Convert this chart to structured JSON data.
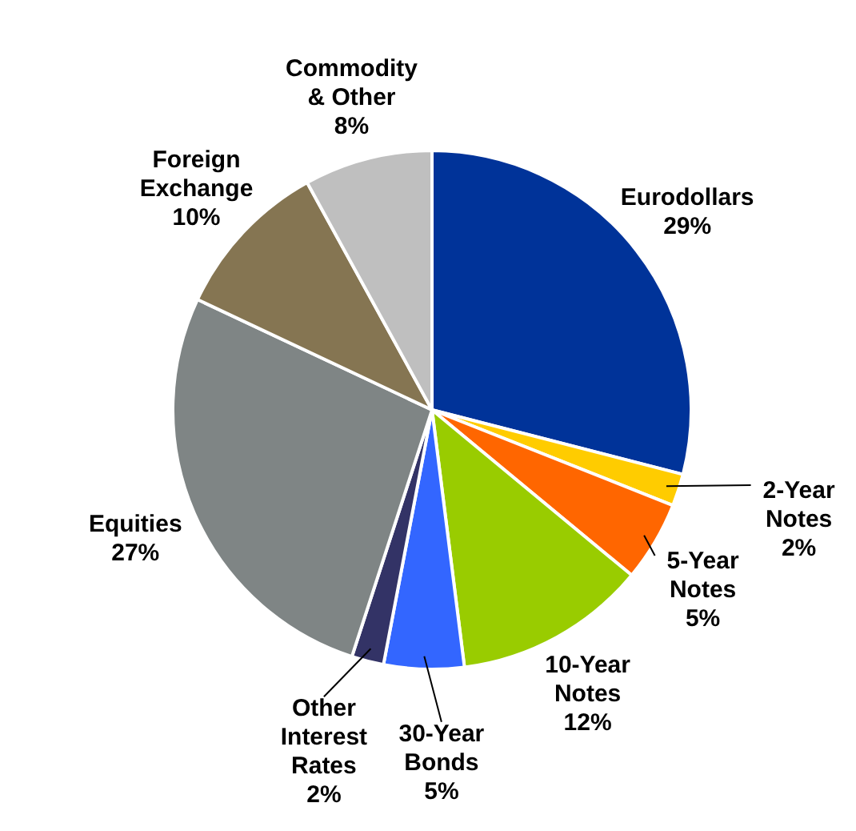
{
  "chart_data": {
    "type": "pie",
    "categories": [
      "Eurodollars",
      "2-Year Notes",
      "5-Year Notes",
      "10-Year Notes",
      "30-Year Bonds",
      "Other Interest Rates",
      "Equities",
      "Foreign Exchange",
      "Commodity & Other"
    ],
    "values": [
      29,
      2,
      5,
      12,
      5,
      2,
      27,
      10,
      8
    ],
    "colors": [
      "#003399",
      "#ffcc00",
      "#ff6600",
      "#99cc00",
      "#3366ff",
      "#333366",
      "#7f8585",
      "#857552",
      "#bfbfbf"
    ],
    "value_labels": [
      "29%",
      "2%",
      "5%",
      "12%",
      "5%",
      "2%",
      "27%",
      "10%",
      "8%"
    ]
  }
}
